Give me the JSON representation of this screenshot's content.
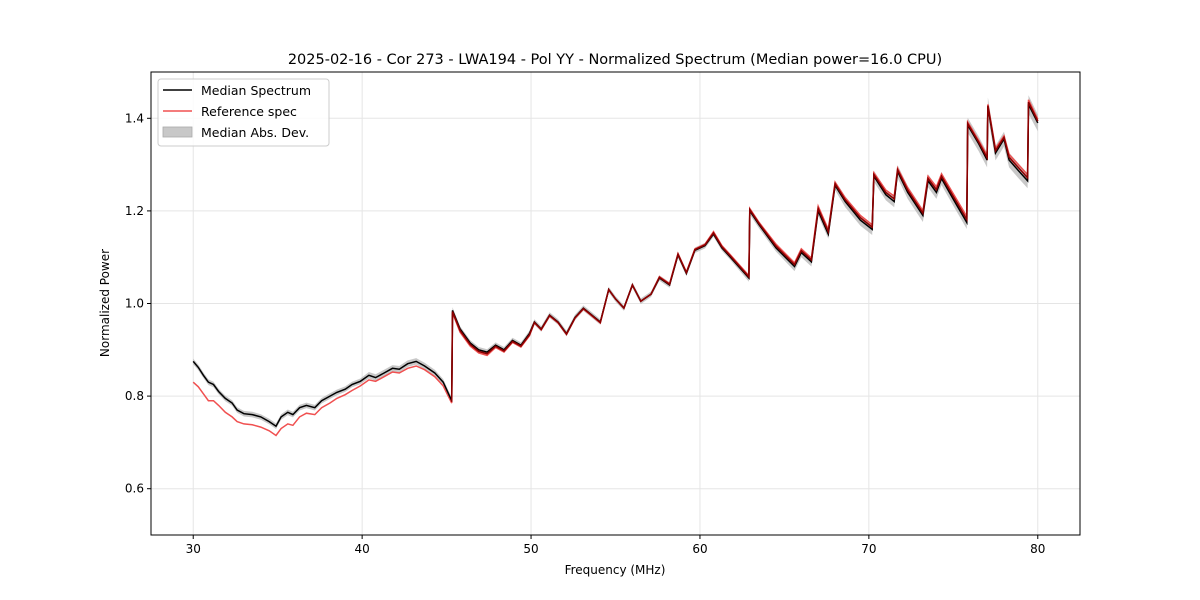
{
  "chart_data": {
    "type": "line",
    "title": "2025-02-16 - Cor 273 - LWA194 - Pol YY - Normalized Spectrum (Median power=16.0 CPU)",
    "xlabel": "Frequency (MHz)",
    "ylabel": "Normalized Power",
    "xlim": [
      27.5,
      82.5
    ],
    "ylim": [
      0.5,
      1.5
    ],
    "xticks": [
      30,
      40,
      50,
      60,
      70,
      80
    ],
    "xtick_labels": [
      "30",
      "40",
      "50",
      "60",
      "70",
      "80"
    ],
    "yticks": [
      0.6,
      0.8,
      1.0,
      1.2,
      1.4
    ],
    "ytick_labels": [
      "0.6",
      "0.8",
      "1.0",
      "1.2",
      "1.4"
    ],
    "grid": true,
    "legend_position": "top-left",
    "legend": [
      {
        "label": "Median Spectrum",
        "kind": "line",
        "color": "#000000"
      },
      {
        "label": "Reference spec",
        "kind": "line",
        "color": "#f05050"
      },
      {
        "label": "Median Abs. Dev.",
        "kind": "band",
        "color": "#b0b0b0"
      }
    ],
    "x": [
      30.0,
      30.3,
      30.6,
      30.9,
      31.2,
      31.5,
      31.9,
      32.3,
      32.6,
      33.0,
      33.5,
      34.0,
      34.5,
      34.9,
      35.2,
      35.6,
      35.9,
      36.3,
      36.7,
      37.2,
      37.6,
      38.1,
      38.5,
      39.0,
      39.4,
      39.9,
      40.4,
      40.8,
      41.3,
      41.8,
      42.2,
      42.7,
      43.2,
      43.7,
      44.3,
      44.8,
      45.3,
      45.35,
      45.8,
      46.4,
      46.9,
      47.4,
      47.9,
      48.4,
      48.9,
      49.4,
      49.9,
      50.2,
      50.6,
      51.1,
      51.6,
      52.1,
      52.6,
      53.1,
      53.6,
      54.1,
      54.6,
      55.0,
      55.5,
      56.0,
      56.5,
      57.1,
      57.6,
      58.2,
      58.7,
      59.2,
      59.7,
      60.3,
      60.8,
      61.3,
      61.8,
      62.9,
      62.95,
      63.5,
      64.5,
      65.6,
      66.0,
      66.6,
      67.0,
      67.6,
      68.0,
      68.6,
      69.5,
      70.2,
      70.3,
      71.0,
      71.5,
      71.7,
      72.3,
      73.2,
      73.5,
      74.0,
      74.3,
      75.0,
      75.8,
      75.85,
      76.5,
      77.0,
      77.05,
      77.5,
      78.0,
      78.3,
      78.9,
      79.4,
      79.45,
      80.0
    ],
    "series": [
      {
        "name": "Median Spectrum",
        "color": "#000000",
        "values": [
          0.875,
          0.862,
          0.845,
          0.83,
          0.825,
          0.81,
          0.795,
          0.785,
          0.77,
          0.762,
          0.76,
          0.755,
          0.745,
          0.735,
          0.755,
          0.765,
          0.76,
          0.775,
          0.78,
          0.775,
          0.79,
          0.8,
          0.808,
          0.815,
          0.825,
          0.832,
          0.845,
          0.84,
          0.85,
          0.86,
          0.858,
          0.87,
          0.875,
          0.865,
          0.85,
          0.83,
          0.79,
          0.985,
          0.945,
          0.915,
          0.9,
          0.895,
          0.91,
          0.9,
          0.92,
          0.91,
          0.935,
          0.96,
          0.945,
          0.975,
          0.96,
          0.935,
          0.97,
          0.99,
          0.975,
          0.96,
          1.03,
          1.01,
          0.99,
          1.04,
          1.005,
          1.02,
          1.055,
          1.04,
          1.105,
          1.065,
          1.115,
          1.125,
          1.15,
          1.12,
          1.1,
          1.055,
          1.2,
          1.17,
          1.12,
          1.08,
          1.11,
          1.09,
          1.2,
          1.15,
          1.255,
          1.22,
          1.18,
          1.16,
          1.275,
          1.235,
          1.22,
          1.285,
          1.24,
          1.19,
          1.265,
          1.24,
          1.27,
          1.225,
          1.175,
          1.385,
          1.345,
          1.31,
          1.425,
          1.325,
          1.355,
          1.31,
          1.285,
          1.265,
          1.43,
          1.39
        ]
      },
      {
        "name": "Reference spec",
        "color": "#f05050",
        "values": [
          0.83,
          0.82,
          0.805,
          0.79,
          0.79,
          0.78,
          0.765,
          0.755,
          0.745,
          0.74,
          0.738,
          0.733,
          0.725,
          0.715,
          0.73,
          0.74,
          0.737,
          0.755,
          0.763,
          0.76,
          0.775,
          0.785,
          0.795,
          0.803,
          0.812,
          0.822,
          0.835,
          0.832,
          0.842,
          0.852,
          0.85,
          0.86,
          0.865,
          0.857,
          0.842,
          0.822,
          0.785,
          0.98,
          0.938,
          0.908,
          0.893,
          0.888,
          0.905,
          0.895,
          0.916,
          0.906,
          0.93,
          0.958,
          0.943,
          0.973,
          0.958,
          0.933,
          0.968,
          0.988,
          0.973,
          0.958,
          1.03,
          1.01,
          0.99,
          1.04,
          1.005,
          1.02,
          1.058,
          1.043,
          1.108,
          1.068,
          1.118,
          1.128,
          1.155,
          1.125,
          1.105,
          1.06,
          1.205,
          1.175,
          1.128,
          1.088,
          1.118,
          1.098,
          1.21,
          1.16,
          1.262,
          1.228,
          1.19,
          1.17,
          1.282,
          1.245,
          1.232,
          1.292,
          1.25,
          1.2,
          1.275,
          1.252,
          1.28,
          1.237,
          1.188,
          1.392,
          1.352,
          1.32,
          1.43,
          1.335,
          1.362,
          1.322,
          1.298,
          1.278,
          1.44,
          1.398
        ]
      }
    ],
    "band": {
      "name": "Median Abs. Dev.",
      "color": "#b0b0b0",
      "halfwidth": [
        0.006,
        0.006,
        0.006,
        0.006,
        0.006,
        0.006,
        0.006,
        0.006,
        0.006,
        0.006,
        0.006,
        0.006,
        0.006,
        0.006,
        0.006,
        0.006,
        0.006,
        0.006,
        0.006,
        0.006,
        0.006,
        0.006,
        0.006,
        0.006,
        0.006,
        0.006,
        0.007,
        0.007,
        0.007,
        0.007,
        0.007,
        0.007,
        0.007,
        0.007,
        0.007,
        0.007,
        0.007,
        0.007,
        0.006,
        0.006,
        0.006,
        0.006,
        0.006,
        0.006,
        0.006,
        0.006,
        0.006,
        0.006,
        0.006,
        0.006,
        0.006,
        0.006,
        0.006,
        0.006,
        0.006,
        0.006,
        0.006,
        0.006,
        0.006,
        0.006,
        0.006,
        0.006,
        0.006,
        0.006,
        0.006,
        0.006,
        0.006,
        0.006,
        0.006,
        0.006,
        0.006,
        0.008,
        0.008,
        0.008,
        0.008,
        0.01,
        0.01,
        0.01,
        0.01,
        0.01,
        0.01,
        0.012,
        0.012,
        0.012,
        0.012,
        0.012,
        0.012,
        0.014,
        0.014,
        0.014,
        0.014,
        0.014,
        0.014,
        0.014,
        0.014,
        0.016,
        0.016,
        0.016,
        0.02,
        0.016,
        0.016,
        0.016,
        0.016,
        0.016,
        0.02,
        0.018
      ]
    }
  }
}
